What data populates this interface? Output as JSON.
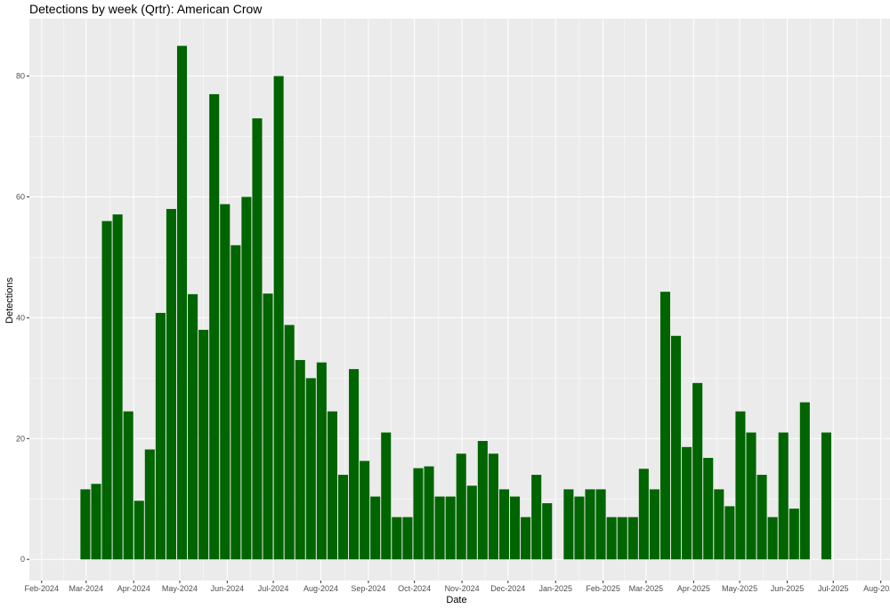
{
  "chart_data": {
    "type": "bar",
    "title": "Detections by week (Qrtr): American Crow",
    "xlabel": "Date",
    "ylabel": "Detections",
    "ylim": [
      -3.5,
      89.5
    ],
    "y_ticks": [
      0,
      20,
      40,
      60,
      80
    ],
    "x_ticks": [
      "Feb-2024",
      "Mar-2024",
      "Apr-2024",
      "May-2024",
      "Jun-2024",
      "Jul-2024",
      "Aug-2024",
      "Sep-2024",
      "Oct-2024",
      "Nov-2024",
      "Dec-2024",
      "Jan-2025",
      "Feb-2025",
      "Mar-2025",
      "Apr-2025",
      "May-2025",
      "Jun-2025",
      "Jul-2025",
      "Aug-2025"
    ],
    "x_tick_dates": [
      "2024-02-01",
      "2024-03-01",
      "2024-04-01",
      "2024-05-01",
      "2024-06-01",
      "2024-07-01",
      "2024-08-01",
      "2024-09-01",
      "2024-10-01",
      "2024-11-01",
      "2024-12-01",
      "2025-01-01",
      "2025-02-01",
      "2025-03-01",
      "2025-04-01",
      "2025-05-01",
      "2025-06-01",
      "2025-07-01",
      "2025-08-01"
    ],
    "xlim": [
      "2024-01-24",
      "2025-08-07"
    ],
    "grid": true,
    "bar_color": "#006400",
    "panel_color": "#ebebeb",
    "x": [
      "2024-02-26",
      "2024-03-04",
      "2024-03-11",
      "2024-03-18",
      "2024-03-25",
      "2024-04-01",
      "2024-04-08",
      "2024-04-15",
      "2024-04-22",
      "2024-04-29",
      "2024-05-06",
      "2024-05-13",
      "2024-05-20",
      "2024-05-27",
      "2024-06-03",
      "2024-06-10",
      "2024-06-17",
      "2024-06-24",
      "2024-07-01",
      "2024-07-08",
      "2024-07-15",
      "2024-07-22",
      "2024-07-29",
      "2024-08-05",
      "2024-08-12",
      "2024-08-19",
      "2024-08-26",
      "2024-09-02",
      "2024-09-09",
      "2024-09-16",
      "2024-09-23",
      "2024-09-30",
      "2024-10-07",
      "2024-10-14",
      "2024-10-21",
      "2024-10-28",
      "2024-11-04",
      "2024-11-11",
      "2024-11-18",
      "2024-11-25",
      "2024-12-02",
      "2024-12-09",
      "2024-12-16",
      "2024-12-23",
      "2025-01-06",
      "2025-01-13",
      "2025-01-20",
      "2025-01-27",
      "2025-02-03",
      "2025-02-10",
      "2025-02-17",
      "2025-02-24",
      "2025-03-03",
      "2025-03-10",
      "2025-03-17",
      "2025-03-24",
      "2025-03-31",
      "2025-04-07",
      "2025-04-14",
      "2025-04-21",
      "2025-04-28",
      "2025-05-05",
      "2025-05-12",
      "2025-05-19",
      "2025-05-26",
      "2025-06-02",
      "2025-06-09",
      "2025-06-23"
    ],
    "values": [
      11.6,
      12.5,
      56,
      57.1,
      24.5,
      9.7,
      18.2,
      40.8,
      58,
      85,
      43.9,
      38,
      77,
      58.8,
      52,
      60,
      73,
      44,
      80,
      38.8,
      33,
      30,
      32.6,
      24.5,
      14,
      31.5,
      16.3,
      10.4,
      21,
      7,
      7,
      15.1,
      15.4,
      10.4,
      10.4,
      17.5,
      12.2,
      19.6,
      17.5,
      11.6,
      10.4,
      7,
      14,
      9.3,
      11.6,
      10.4,
      11.6,
      11.6,
      7,
      7,
      7,
      15,
      11.6,
      44.3,
      37,
      18.6,
      29.2,
      16.8,
      11.6,
      8.8,
      24.5,
      21,
      14,
      7,
      21,
      8.4,
      26,
      21
    ]
  }
}
